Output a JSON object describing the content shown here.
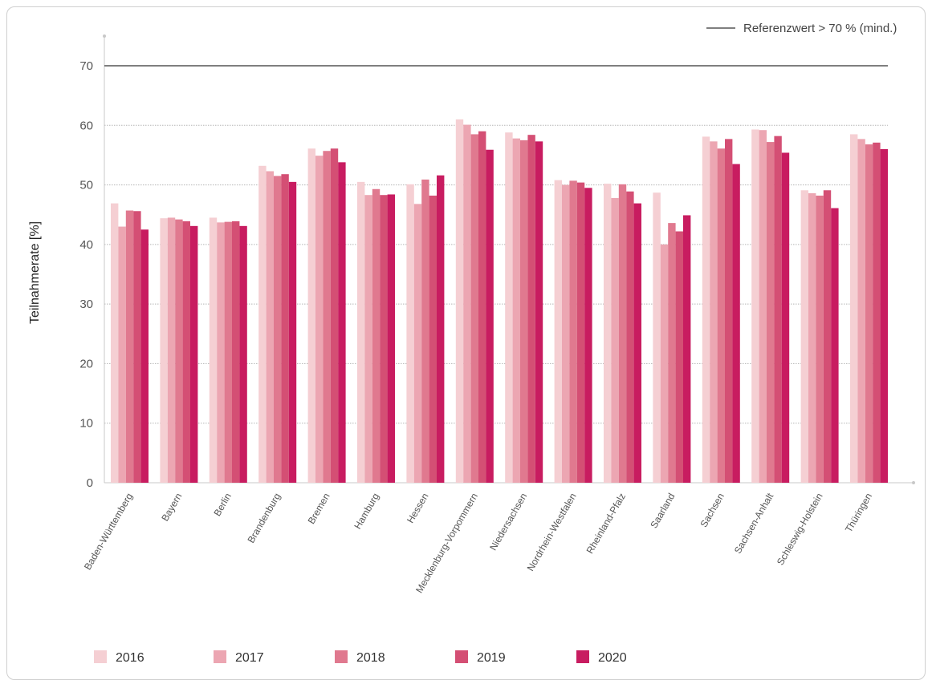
{
  "chart_data": {
    "type": "bar",
    "title": "",
    "xlabel": "",
    "ylabel": "Teilnahmerate [%]",
    "ylim": [
      0,
      70
    ],
    "yticks": [
      0,
      10,
      20,
      30,
      40,
      50,
      60,
      70
    ],
    "grid": true,
    "legend_position": "bottom",
    "reference_line": {
      "value": 70,
      "label": "Referenzwert > 70 % (mind.)",
      "color": "#555555"
    },
    "categories": [
      "Baden-Württemberg",
      "Bayern",
      "Berlin",
      "Brandenburg",
      "Bremen",
      "Hamburg",
      "Hessen",
      "Mecklenburg-Vorpommern",
      "Niedersachsen",
      "Nordrhein-Westfalen",
      "Rheinland-Pfalz",
      "Saarland",
      "Sachsen",
      "Sachsen-Anhalt",
      "Schleswig-Holstein",
      "Thüringen"
    ],
    "series": [
      {
        "name": "2016",
        "color": "#f5cfd3",
        "values": [
          46.9,
          44.4,
          44.5,
          53.2,
          56.1,
          50.5,
          50.1,
          61.0,
          58.8,
          50.8,
          50.2,
          48.7,
          58.1,
          59.3,
          49.1,
          58.5
        ]
      },
      {
        "name": "2017",
        "color": "#eca6b2",
        "values": [
          43.0,
          44.5,
          43.7,
          52.3,
          54.9,
          48.3,
          46.8,
          60.1,
          57.8,
          50.0,
          47.8,
          40.0,
          57.3,
          59.2,
          48.6,
          57.7
        ]
      },
      {
        "name": "2018",
        "color": "#e0798f",
        "values": [
          45.7,
          44.2,
          43.8,
          51.5,
          55.7,
          49.3,
          50.9,
          58.5,
          57.5,
          50.7,
          50.1,
          43.6,
          56.1,
          57.2,
          48.2,
          56.8
        ]
      },
      {
        "name": "2019",
        "color": "#d44f74",
        "values": [
          45.6,
          43.9,
          43.9,
          51.8,
          56.1,
          48.3,
          48.2,
          59.0,
          58.4,
          50.4,
          48.9,
          42.2,
          57.7,
          58.2,
          49.1,
          57.1
        ]
      },
      {
        "name": "2020",
        "color": "#c81c60",
        "values": [
          42.5,
          43.1,
          43.1,
          50.5,
          53.8,
          48.4,
          51.6,
          55.9,
          57.3,
          49.5,
          46.9,
          44.9,
          53.5,
          55.4,
          46.1,
          56.0
        ]
      }
    ]
  }
}
